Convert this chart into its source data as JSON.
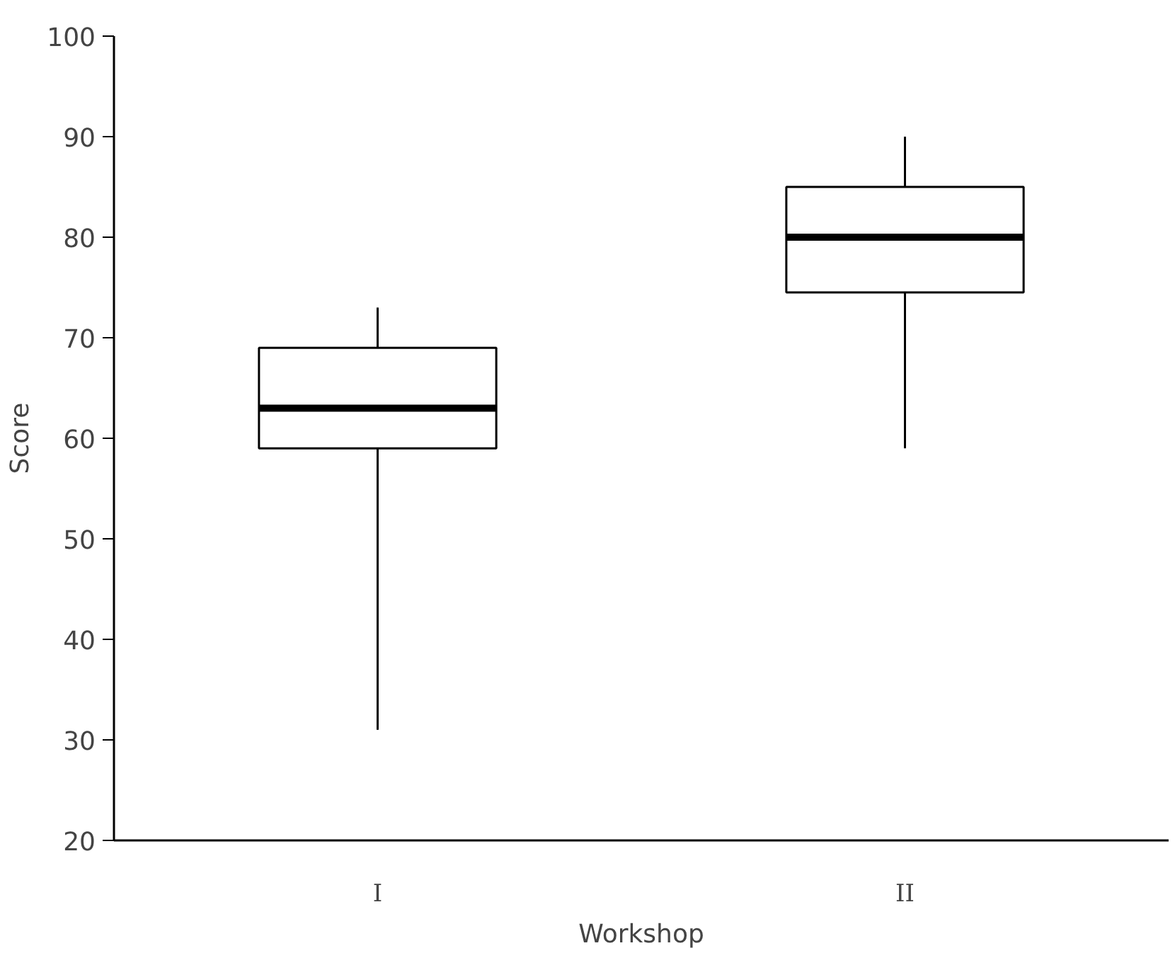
{
  "chart_data": {
    "type": "box",
    "xlabel": "Workshop",
    "ylabel": "Score",
    "categories": [
      "I",
      "II"
    ],
    "boxes": [
      {
        "low": 31,
        "q1": 59,
        "median": 63,
        "q3": 69,
        "high": 73
      },
      {
        "low": 59,
        "q1": 74.5,
        "median": 80,
        "q3": 85,
        "high": 90
      }
    ],
    "color": "#000000",
    "ylim": [
      20,
      100
    ],
    "yticks": [
      20,
      30,
      40,
      50,
      60,
      70,
      80,
      90,
      100
    ],
    "grid": false
  }
}
